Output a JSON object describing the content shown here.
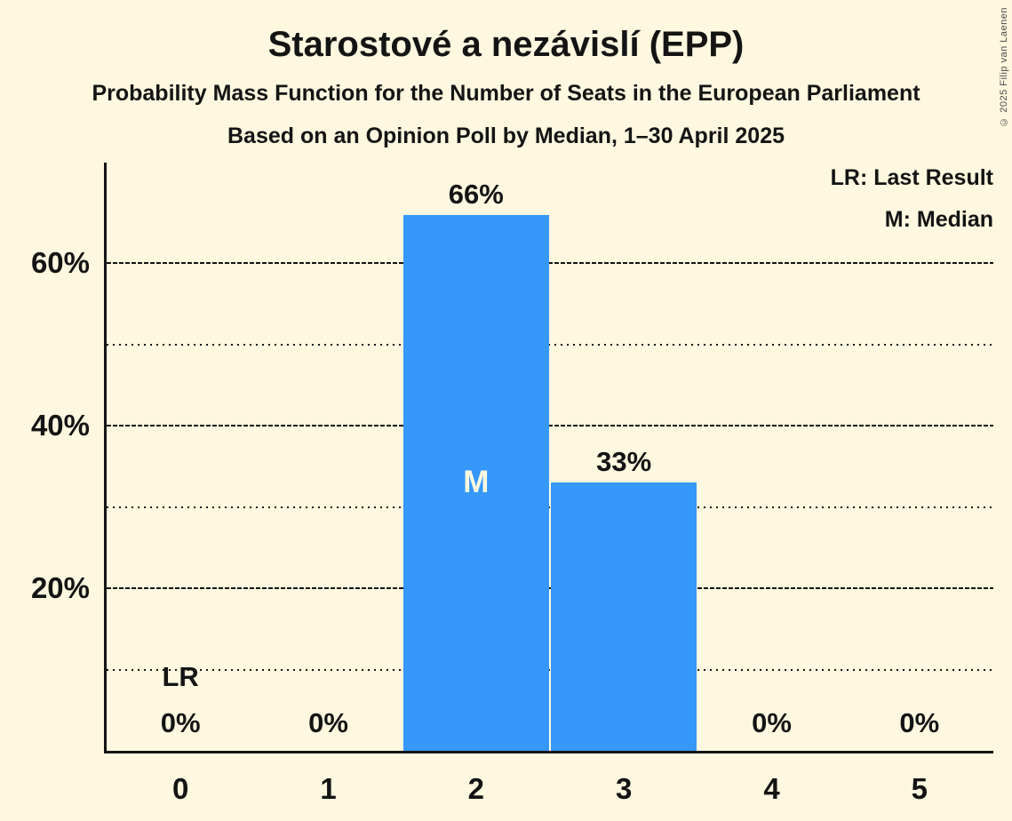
{
  "header": {
    "title": "Starostové a nezávislí (EPP)",
    "subtitle1": "Probability Mass Function for the Number of Seats in the European Parliament",
    "subtitle2": "Based on an Opinion Poll by Median, 1–30 April 2025"
  },
  "legend": {
    "last_result": "LR: Last Result",
    "median": "M: Median"
  },
  "copyright": "© 2025 Filip van Laenen",
  "chart_data": {
    "type": "bar",
    "title": "Starostové a nezávislí (EPP)",
    "subtitle": "Probability Mass Function for the Number of Seats in the European Parliament",
    "poll_note": "Based on an Opinion Poll by Median, 1–30 April 2025",
    "categories": [
      "0",
      "1",
      "2",
      "3",
      "4",
      "5"
    ],
    "values": [
      0,
      0,
      66,
      33,
      0,
      0
    ],
    "value_labels": [
      "0%",
      "0%",
      "66%",
      "33%",
      "0%",
      "0%"
    ],
    "yticks": [
      {
        "value": 20,
        "label": "20%"
      },
      {
        "value": 40,
        "label": "40%"
      },
      {
        "value": 60,
        "label": "60%"
      }
    ],
    "solid_gridlines": [
      20,
      40,
      60
    ],
    "dotted_gridlines": [
      10,
      30,
      50
    ],
    "ylim": [
      0,
      72.4
    ],
    "grid": true,
    "legend_entries": [
      "LR: Last Result",
      "M: Median"
    ],
    "legend_position": "top-right",
    "annotations": {
      "median_category": "2",
      "median_marker": "M",
      "last_result_category": "0",
      "last_result_marker": "LR"
    },
    "bar_color": "#3598FA",
    "background_color": "#FDF8DF",
    "text_color": "#141414"
  }
}
